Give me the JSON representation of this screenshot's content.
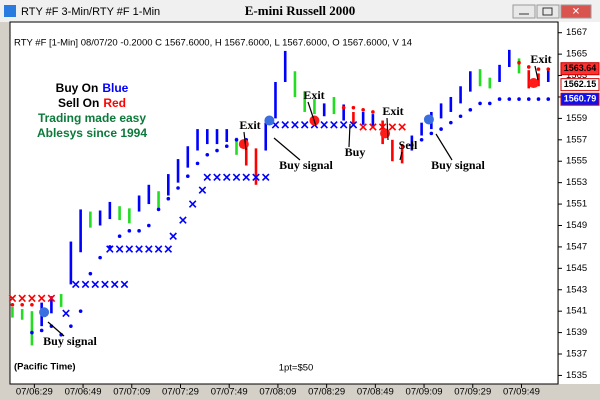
{
  "window_title": "RTY #F 3-Min/RTY #F 1-Min",
  "chart_data": {
    "type": "range",
    "title": "E-mini Russell 2000",
    "info": "RTY #F [1-Min] 08/07/20 -0.2000 C 1567.6000, H 1567.6000, L 1567.6000, O 1567.6000, V 14",
    "legend_lines": [
      {
        "text": "Buy On",
        "highlight": "Blue",
        "color": "#0000ff"
      },
      {
        "text": "Sell On",
        "highlight": "Red",
        "color": "#ff0000"
      }
    ],
    "slogans": [
      "Trading made easy",
      "Ablesys since 1994"
    ],
    "slogan_color": "#0b7a3a",
    "annotations": [
      "Buy signal",
      "Exit",
      "Buy signal",
      "Exit",
      "Buy",
      "Exit",
      "Sell",
      "Buy signal",
      "Exit"
    ],
    "footnote": "(Pacific Time)",
    "scale_note": "1pt=$50",
    "xlim": [
      19,
      244
    ],
    "xticks": [
      {
        "value": 29,
        "label": "07/06:29"
      },
      {
        "value": 49,
        "label": "07/06:49"
      },
      {
        "value": 69,
        "label": "07/07:09"
      },
      {
        "value": 89,
        "label": "07/07:29"
      },
      {
        "value": 109,
        "label": "07/07:49"
      },
      {
        "value": 129,
        "label": "07/08:09"
      },
      {
        "value": 149,
        "label": "07/08:29"
      },
      {
        "value": 169,
        "label": "07/08:49"
      },
      {
        "value": 189,
        "label": "07/09:09"
      },
      {
        "value": 209,
        "label": "07/09:29"
      },
      {
        "value": 229,
        "label": "07/09:49"
      }
    ],
    "ylim": [
      1534.2,
      1568
    ],
    "yticks": [
      1535,
      1537,
      1539,
      1541,
      1543,
      1545,
      1547,
      1549,
      1551,
      1553,
      1555,
      1557,
      1559,
      1561,
      1563,
      1565,
      1567
    ],
    "bars": {
      "x": [
        20,
        24,
        28,
        32,
        36,
        40,
        44,
        48,
        52,
        56,
        60,
        64,
        68,
        72,
        76,
        80,
        84,
        88,
        92,
        96,
        100,
        104,
        108,
        112,
        116,
        120,
        124,
        128,
        132,
        136,
        140,
        144,
        148,
        152,
        156,
        160,
        164,
        168,
        172,
        176,
        180,
        184,
        188,
        192,
        196,
        200,
        204,
        208,
        212,
        216,
        220,
        224,
        228,
        232,
        236,
        240
      ],
      "low": [
        1540.4,
        1540.2,
        1537.8,
        1539.6,
        1540.8,
        1541.4,
        1543.5,
        1546.5,
        1548.8,
        1549,
        1549.6,
        1549.5,
        1549.2,
        1550.3,
        1551,
        1550.4,
        1551.8,
        1553,
        1554.4,
        1556,
        1556.6,
        1556.6,
        1556.8,
        1555.6,
        1554.6,
        1552.8,
        1556,
        1559,
        1562.4,
        1561,
        1559.6,
        1559.4,
        1559.2,
        1559.4,
        1558.8,
        1558.5,
        1558.4,
        1558.2,
        1556.6,
        1555,
        1554.8,
        1556,
        1557.4,
        1558,
        1559,
        1559.6,
        1560.4,
        1561.5,
        1562,
        1561.8,
        1562.4,
        1563.8,
        1563.2,
        1561.8,
        1562,
        1562.4
      ],
      "high": [
        1541.4,
        1541.2,
        1541,
        1541.8,
        1542.4,
        1542.6,
        1547.5,
        1550.5,
        1550.3,
        1550.4,
        1551.2,
        1550.8,
        1550.6,
        1551.8,
        1552.8,
        1552.2,
        1553.8,
        1555.2,
        1556.4,
        1558,
        1558,
        1558,
        1558,
        1557.2,
        1557,
        1556.2,
        1558.6,
        1562.4,
        1565.3,
        1563.4,
        1561.5,
        1560.8,
        1560.4,
        1561,
        1560.3,
        1559.6,
        1559.6,
        1559.4,
        1558.8,
        1557,
        1556.6,
        1557.4,
        1558.6,
        1559.6,
        1560.4,
        1561,
        1562,
        1563.4,
        1563.6,
        1562.8,
        1564,
        1565.4,
        1564.6,
        1563.5,
        1563.2,
        1563.6
      ],
      "colors": [
        "#22dd22",
        "#22dd22",
        "#22dd22",
        "#0000ff",
        "#0000ff",
        "#22dd22",
        "#0000ff",
        "#0000ff",
        "#22dd22",
        "#0000ff",
        "#0000ff",
        "#22dd22",
        "#22dd22",
        "#0000ff",
        "#0000ff",
        "#22dd22",
        "#0000ff",
        "#0000ff",
        "#0000ff",
        "#0000ff",
        "#0000ff",
        "#0000ff",
        "#0000ff",
        "#22dd22",
        "#ff0000",
        "#ff0000",
        "#0000ff",
        "#0000ff",
        "#0000ff",
        "#22dd22",
        "#22dd22",
        "#22dd22",
        "#0000ff",
        "#22dd22",
        "#0000ff",
        "#ff0000",
        "#0000ff",
        "#0000ff",
        "#ff0000",
        "#ff0000",
        "#ff0000",
        "#0000ff",
        "#0000ff",
        "#0000ff",
        "#0000ff",
        "#0000ff",
        "#0000ff",
        "#0000ff",
        "#22dd22",
        "#22dd22",
        "#0000ff",
        "#0000ff",
        "#22dd22",
        "#ff0000",
        "#ff0000",
        "#0000ff"
      ]
    },
    "blue_dots": {
      "color": "#0000ff",
      "x": [
        28,
        32,
        36,
        40,
        44,
        48,
        52,
        56,
        60,
        64,
        68,
        72,
        76,
        80,
        84,
        88,
        92,
        96,
        100,
        104,
        108,
        112,
        116,
        184,
        188,
        192,
        196,
        200,
        204,
        208,
        212,
        216,
        220,
        224,
        228,
        232,
        236,
        240
      ],
      "values": [
        1539,
        1539.2,
        1539.6,
        1538.8,
        1539.6,
        1541,
        1544.5,
        1546,
        1547,
        1548,
        1548.5,
        1548.5,
        1549,
        1550.5,
        1551.5,
        1552.5,
        1553.6,
        1554.8,
        1555.6,
        1556,
        1556.4,
        1557,
        1557,
        1556.5,
        1557,
        1557.6,
        1558,
        1558.6,
        1559.2,
        1559.8,
        1560.4,
        1560.4,
        1560.8,
        1560.8,
        1560.8,
        1560.8,
        1560.8,
        1560.8
      ]
    },
    "red_dots": {
      "color": "#ff0000",
      "x": [
        20,
        24,
        28,
        156,
        160,
        164,
        168,
        228,
        232,
        236,
        240
      ],
      "values": [
        1541.6,
        1541.6,
        1541.6,
        1560,
        1560,
        1559.8,
        1559.6,
        1564.2,
        1563.8,
        1563.6,
        1563.6
      ]
    },
    "blue_x": {
      "color": "#0000ff",
      "x": [
        42,
        46,
        50,
        54,
        58,
        62,
        66,
        60,
        64,
        68,
        72,
        76,
        80,
        84,
        86,
        90,
        94,
        98,
        100,
        104,
        108,
        112,
        116,
        120,
        124,
        128,
        132,
        136,
        140,
        144,
        148,
        152,
        156,
        160
      ],
      "values": [
        1540.8,
        1543.5,
        1543.5,
        1543.5,
        1543.5,
        1543.5,
        1543.5,
        1546.8,
        1546.8,
        1546.8,
        1546.8,
        1546.8,
        1546.8,
        1546.8,
        1548,
        1549.5,
        1551,
        1552.3,
        1553.5,
        1553.5,
        1553.5,
        1553.5,
        1553.5,
        1553.5,
        1553.5,
        1558.4,
        1558.4,
        1558.4,
        1558.4,
        1558.4,
        1558.4,
        1558.4,
        1558.4,
        1558.4
      ]
    },
    "red_x": {
      "color": "#ff0000",
      "x": [
        20,
        24,
        28,
        32,
        36,
        164,
        168,
        172,
        176,
        180
      ],
      "values": [
        1542.2,
        1542.2,
        1542.2,
        1542.2,
        1542.2,
        1558.2,
        1558.2,
        1558.2,
        1558.2,
        1558.2
      ]
    },
    "signals": {
      "x": [
        33,
        115,
        125.5,
        144,
        173,
        191,
        234
      ],
      "values": [
        1540.9,
        1556.6,
        1558.8,
        1558.8,
        1557.6,
        1558.9,
        1562.3
      ],
      "colors": [
        "#3a6fe0",
        "#ff1a1a",
        "#3a6fe0",
        "#ff1a1a",
        "#ff1a1a",
        "#3a6fe0",
        "#ff1a1a"
      ]
    },
    "price_labels": {
      "values": [
        1563.64,
        1562.15,
        1560.79
      ],
      "colors": [
        "#ff3030",
        "#ffffff",
        "#1010ee"
      ],
      "text_colors": [
        "#000000",
        "#000000",
        "#ffffff"
      ]
    }
  }
}
